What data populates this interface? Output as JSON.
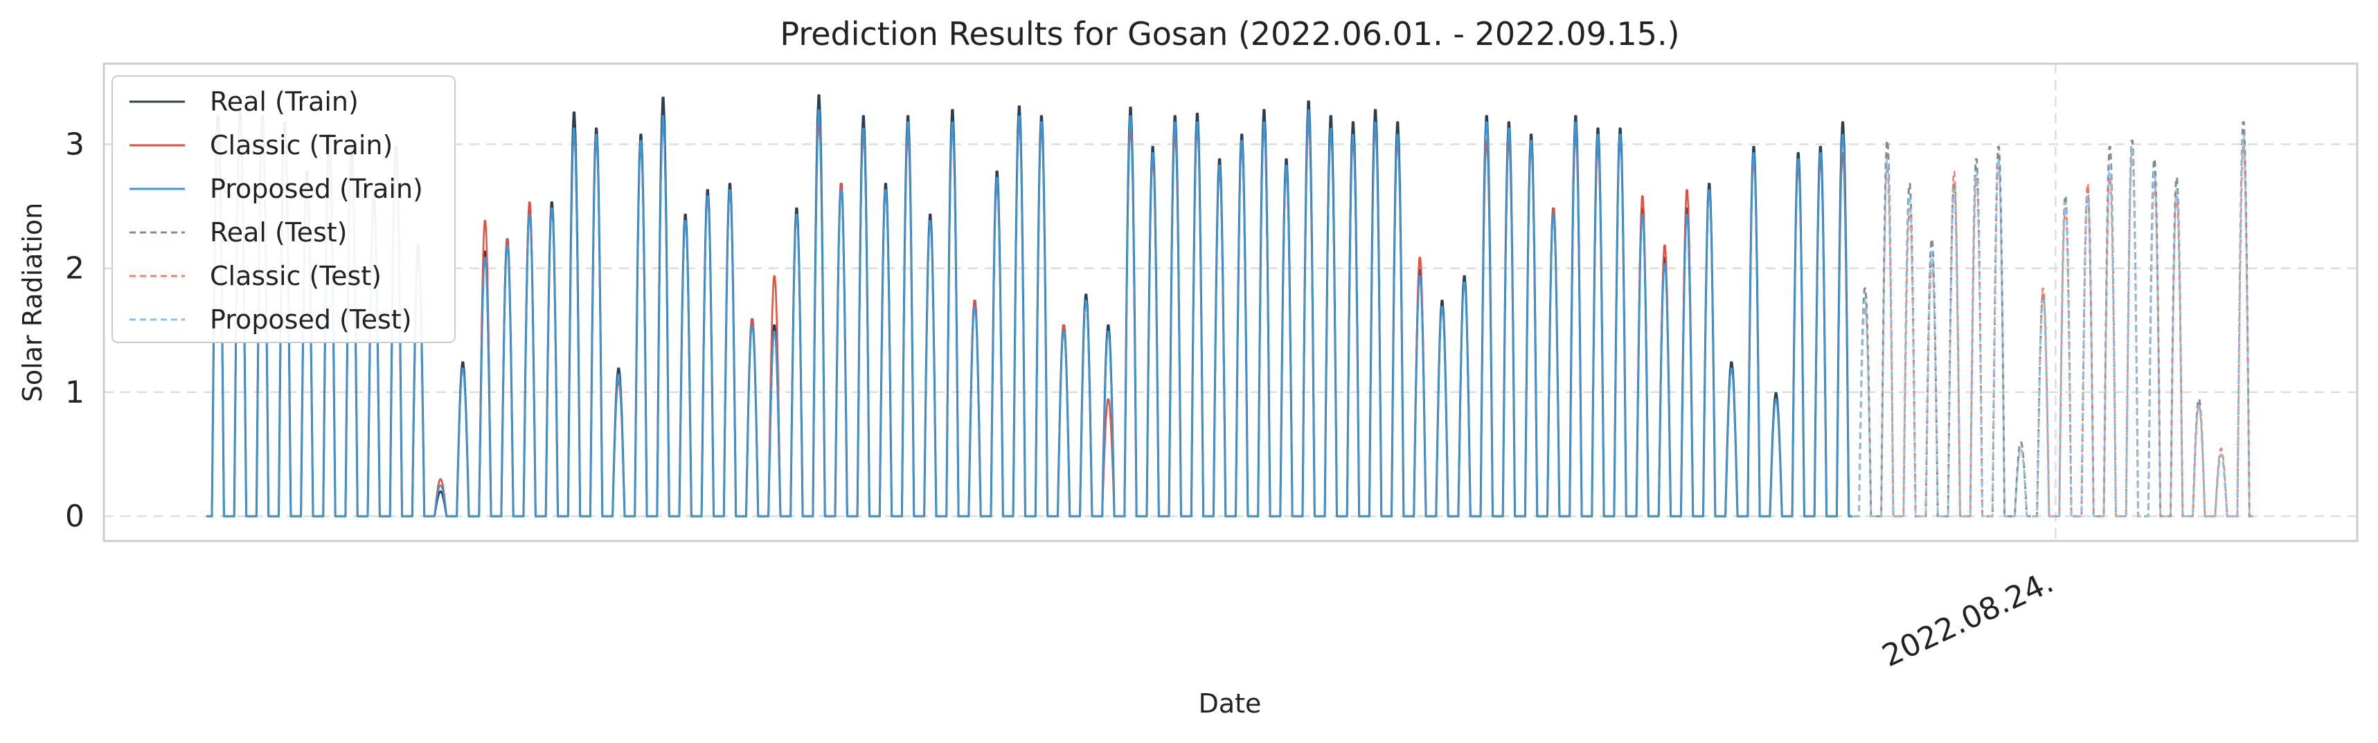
{
  "chart_data": {
    "type": "line",
    "title": "Prediction Results for Gosan (2022.06.01. - 2022.09.15.)",
    "xlabel": "Date",
    "ylabel": "Solar Radiation",
    "ylim": [
      -0.2,
      3.65
    ],
    "yticks": [
      0,
      1,
      2,
      3
    ],
    "xticks": [
      {
        "x": 1994,
        "label": "2022.08.24."
      }
    ],
    "split_index": 1994,
    "start_index": 0,
    "samples_per_day": 24,
    "grid": true,
    "legend": "top-left",
    "colors": {
      "real_train": "#2c3e50",
      "classic_train": "#e74c3c",
      "proposed_train": "#3498db",
      "real_test": "#7f8c8d",
      "classic_test": "#f08070",
      "proposed_test": "#85c1e9",
      "grid": "#dddddd",
      "frame": "#cccccc"
    },
    "legend_entries": [
      "Real (Train)",
      "Classic (Train)",
      "Proposed (Train)",
      "Real (Test)",
      "Classic (Test)",
      "Proposed (Test)"
    ],
    "series": [
      {
        "name": "Real (Train)",
        "style": "solid",
        "daily_peaks": [
          3.25,
          3.3,
          3.25,
          3.2,
          2.8,
          3.1,
          3.0,
          2.6,
          3.0,
          2.2,
          0.2,
          1.25,
          2.15,
          2.25,
          2.5,
          2.55,
          3.28,
          3.15,
          1.2,
          3.1,
          3.4,
          2.45,
          2.65,
          2.7,
          1.6,
          1.55,
          2.5,
          3.42,
          2.7,
          3.25,
          2.7,
          3.25,
          2.45,
          3.3,
          1.75,
          2.8,
          3.33,
          3.25,
          1.55,
          1.8,
          1.55,
          3.32,
          3.0,
          3.25,
          3.27,
          2.9,
          3.1,
          3.3,
          2.9,
          3.37,
          3.25,
          3.2,
          3.3,
          3.2,
          2.0,
          1.75,
          1.95,
          3.25,
          3.2,
          3.1,
          2.5,
          3.25,
          3.15,
          3.15,
          2.5,
          2.1,
          2.5,
          2.7,
          1.25,
          3.0,
          1.0,
          2.95,
          3.0,
          3.2
        ]
      },
      {
        "name": "Classic (Train)",
        "style": "solid",
        "daily_peaks": [
          3.1,
          3.2,
          3.15,
          3.05,
          2.7,
          2.9,
          2.85,
          2.5,
          2.9,
          2.1,
          0.3,
          1.2,
          2.4,
          2.25,
          2.55,
          2.5,
          3.1,
          3.05,
          1.1,
          3.0,
          3.2,
          2.4,
          2.6,
          2.65,
          1.6,
          1.95,
          2.45,
          3.2,
          2.7,
          3.1,
          2.65,
          3.1,
          2.4,
          3.15,
          1.75,
          2.7,
          3.2,
          3.15,
          1.55,
          1.75,
          0.95,
          3.15,
          2.9,
          3.1,
          3.15,
          2.8,
          3.0,
          3.15,
          2.8,
          3.2,
          3.1,
          3.05,
          3.15,
          3.05,
          2.1,
          1.7,
          1.9,
          3.05,
          3.05,
          3.0,
          2.5,
          3.1,
          3.0,
          3.05,
          2.6,
          2.2,
          2.65,
          2.65,
          1.2,
          2.9,
          0.95,
          2.85,
          2.9,
          2.95
        ]
      },
      {
        "name": "Proposed (Train)",
        "style": "solid",
        "daily_peaks": [
          3.15,
          3.2,
          3.2,
          3.1,
          2.75,
          3.0,
          2.9,
          2.55,
          2.95,
          2.15,
          0.25,
          1.2,
          2.1,
          2.2,
          2.45,
          2.5,
          3.15,
          3.1,
          1.15,
          3.05,
          3.25,
          2.4,
          2.6,
          2.65,
          1.55,
          1.5,
          2.45,
          3.3,
          2.65,
          3.15,
          2.65,
          3.2,
          2.4,
          3.2,
          1.7,
          2.75,
          3.25,
          3.2,
          1.5,
          1.75,
          1.5,
          3.25,
          2.95,
          3.2,
          3.2,
          2.85,
          3.05,
          3.2,
          2.85,
          3.3,
          3.15,
          3.1,
          3.2,
          3.1,
          1.95,
          1.7,
          1.9,
          3.2,
          3.15,
          3.05,
          2.45,
          3.2,
          3.1,
          3.1,
          2.45,
          2.05,
          2.45,
          2.65,
          1.2,
          2.95,
          0.95,
          2.9,
          2.95,
          3.1
        ]
      },
      {
        "name": "Real (Test)",
        "style": "dashed",
        "daily_peaks": [
          1.85,
          3.05,
          2.7,
          2.25,
          2.7,
          2.9,
          3.0,
          0.6,
          1.8,
          2.6,
          2.65,
          3.0,
          3.05,
          2.9,
          2.75,
          0.95,
          0.5,
          3.2
        ]
      },
      {
        "name": "Classic (Test)",
        "style": "dashed",
        "daily_peaks": [
          1.7,
          2.85,
          2.5,
          2.05,
          2.8,
          2.75,
          2.85,
          0.55,
          1.85,
          2.5,
          2.7,
          2.75,
          2.95,
          2.7,
          2.6,
          0.9,
          0.55,
          3.0
        ]
      },
      {
        "name": "Proposed (Test)",
        "style": "dashed",
        "daily_peaks": [
          1.75,
          2.9,
          2.6,
          2.15,
          2.65,
          2.8,
          2.9,
          0.55,
          1.75,
          2.55,
          2.6,
          2.85,
          3.0,
          2.8,
          2.65,
          0.9,
          0.5,
          3.1
        ]
      }
    ]
  }
}
